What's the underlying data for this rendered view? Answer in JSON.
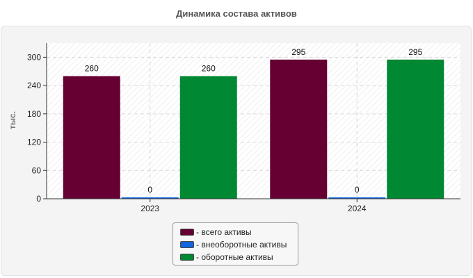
{
  "chart_data": {
    "type": "bar",
    "title": "Динамика состава активов",
    "ylabel": "тыс.",
    "xlabel": "",
    "categories": [
      "2023",
      "2024"
    ],
    "ylim": [
      0,
      330
    ],
    "yticks": [
      0,
      60,
      120,
      180,
      240,
      300
    ],
    "grid": true,
    "legend_position": "bottom",
    "series": [
      {
        "name": "- всего активы",
        "values": [
          260,
          295
        ],
        "color": "#660033"
      },
      {
        "name": "- внеоборотные активы",
        "values": [
          0,
          0
        ],
        "color": "#1166dd"
      },
      {
        "name": "- оборотные активы",
        "values": [
          260,
          295
        ],
        "color": "#008833"
      }
    ]
  }
}
